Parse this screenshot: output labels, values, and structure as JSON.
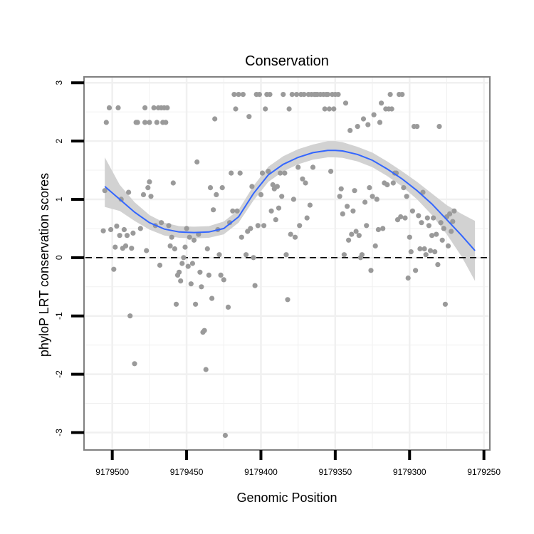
{
  "chart_data": {
    "type": "scatter",
    "title": "Conservation",
    "xlabel": "Genomic Position",
    "ylabel": "phyloP LRT conservation scores",
    "x_reversed": true,
    "xlim": [
      9179519,
      9179246
    ],
    "ylim": [
      -3.3,
      3.1
    ],
    "xticks": [
      9179500,
      9179450,
      9179400,
      9179350,
      9179300,
      9179250
    ],
    "xtick_labels": [
      "9179500",
      "9179450",
      "9179400",
      "9179350",
      "9179300",
      "9179250"
    ],
    "yticks": [
      -3,
      -2,
      -1,
      0,
      1,
      2,
      3
    ],
    "ytick_labels": [
      "-3",
      "-2",
      "-1",
      "0",
      "1",
      "2",
      "3"
    ],
    "reference_line": {
      "y": 0,
      "style": "dashed"
    },
    "colors": {
      "points": "#9a9a9a",
      "smooth_line": "#3366ff",
      "ribbon": "#d0d0d0",
      "grid": "#f0f0f0",
      "frame": "#808080",
      "reference": "#000000"
    },
    "smooth": {
      "x": [
        9179505,
        9179495,
        9179485,
        9179475,
        9179465,
        9179455,
        9179445,
        9179435,
        9179425,
        9179415,
        9179405,
        9179395,
        9179385,
        9179375,
        9179365,
        9179355,
        9179350,
        9179345,
        9179335,
        9179325,
        9179315,
        9179305,
        9179295,
        9179285,
        9179275,
        9179265,
        9179256
      ],
      "y": [
        1.22,
        1.0,
        0.78,
        0.6,
        0.49,
        0.44,
        0.43,
        0.44,
        0.5,
        0.7,
        1.1,
        1.42,
        1.6,
        1.72,
        1.8,
        1.84,
        1.84,
        1.83,
        1.77,
        1.67,
        1.52,
        1.35,
        1.15,
        0.92,
        0.65,
        0.38,
        0.12
      ],
      "ci_lower": [
        0.87,
        0.8,
        0.63,
        0.48,
        0.38,
        0.34,
        0.33,
        0.34,
        0.4,
        0.6,
        0.98,
        1.3,
        1.48,
        1.6,
        1.68,
        1.72,
        1.72,
        1.71,
        1.65,
        1.55,
        1.4,
        1.22,
        1.0,
        0.73,
        0.4,
        0.02,
        -0.4
      ],
      "ci_upper": [
        1.72,
        1.25,
        0.95,
        0.73,
        0.6,
        0.54,
        0.53,
        0.54,
        0.62,
        0.82,
        1.23,
        1.56,
        1.74,
        1.86,
        1.94,
        2.0,
        2.0,
        1.98,
        1.9,
        1.8,
        1.65,
        1.48,
        1.3,
        1.1,
        0.9,
        0.75,
        0.63
      ]
    },
    "points": [
      [
        9179506,
        0.46
      ],
      [
        9179505,
        1.15
      ],
      [
        9179504,
        2.32
      ],
      [
        9179502,
        2.57
      ],
      [
        9179501,
        0.48
      ],
      [
        9179499,
        -0.2
      ],
      [
        9179498,
        0.18
      ],
      [
        9179497,
        0.54
      ],
      [
        9179496,
        2.57
      ],
      [
        9179495,
        0.38
      ],
      [
        9179494,
        1.0
      ],
      [
        9179493,
        0.16
      ],
      [
        9179492,
        0.48
      ],
      [
        9179491,
        0.2
      ],
      [
        9179490,
        0.38
      ],
      [
        9179489,
        1.12
      ],
      [
        9179488,
        -1.0
      ],
      [
        9179487,
        0.16
      ],
      [
        9179486,
        0.42
      ],
      [
        9179485,
        -1.82
      ],
      [
        9179484,
        2.32
      ],
      [
        9179483,
        2.32
      ],
      [
        9179481,
        0.5
      ],
      [
        9179479,
        1.08
      ],
      [
        9179478,
        2.32
      ],
      [
        9179478,
        2.57
      ],
      [
        9179477,
        0.12
      ],
      [
        9179476,
        1.2
      ],
      [
        9179475,
        1.3
      ],
      [
        9179475,
        2.32
      ],
      [
        9179474,
        1.05
      ],
      [
        9179472,
        2.57
      ],
      [
        9179471,
        0.55
      ],
      [
        9179470,
        2.32
      ],
      [
        9179469,
        2.57
      ],
      [
        9179468,
        -0.13
      ],
      [
        9179467,
        2.57
      ],
      [
        9179467,
        0.6
      ],
      [
        9179466,
        2.32
      ],
      [
        9179465,
        2.57
      ],
      [
        9179464,
        2.32
      ],
      [
        9179463,
        2.57
      ],
      [
        9179462,
        0.55
      ],
      [
        9179461,
        0.2
      ],
      [
        9179460,
        0.35
      ],
      [
        9179459,
        1.28
      ],
      [
        9179458,
        0.15
      ],
      [
        9179457,
        -0.8
      ],
      [
        9179456,
        -0.3
      ],
      [
        9179455,
        -0.25
      ],
      [
        9179454,
        -0.4
      ],
      [
        9179453,
        -0.1
      ],
      [
        9179452,
        0.0
      ],
      [
        9179451,
        0.18
      ],
      [
        9179450,
        0.5
      ],
      [
        9179449,
        -0.15
      ],
      [
        9179448,
        0.35
      ],
      [
        9179447,
        -0.45
      ],
      [
        9179446,
        -0.1
      ],
      [
        9179445,
        0.3
      ],
      [
        9179444,
        -0.8
      ],
      [
        9179443,
        1.64
      ],
      [
        9179442,
        0.4
      ],
      [
        9179441,
        -0.25
      ],
      [
        9179440,
        -0.5
      ],
      [
        9179439,
        -1.28
      ],
      [
        9179438,
        -1.25
      ],
      [
        9179437,
        -1.92
      ],
      [
        9179436,
        0.15
      ],
      [
        9179435,
        -0.3
      ],
      [
        9179434,
        1.2
      ],
      [
        9179433,
        -0.7
      ],
      [
        9179432,
        0.82
      ],
      [
        9179431,
        2.38
      ],
      [
        9179430,
        1.08
      ],
      [
        9179429,
        0.48
      ],
      [
        9179428,
        0.05
      ],
      [
        9179427,
        -0.3
      ],
      [
        9179426,
        1.2
      ],
      [
        9179425,
        -0.38
      ],
      [
        9179424,
        -3.05
      ],
      [
        9179422,
        -0.85
      ],
      [
        9179421,
        0.6
      ],
      [
        9179420,
        1.45
      ],
      [
        9179419,
        0.8
      ],
      [
        9179418,
        2.8
      ],
      [
        9179417,
        2.55
      ],
      [
        9179416,
        0.8
      ],
      [
        9179415,
        2.8
      ],
      [
        9179414,
        1.45
      ],
      [
        9179413,
        0.35
      ],
      [
        9179412,
        2.8
      ],
      [
        9179410,
        0.05
      ],
      [
        9179409,
        0.45
      ],
      [
        9179408,
        2.42
      ],
      [
        9179407,
        0.5
      ],
      [
        9179406,
        1.22
      ],
      [
        9179405,
        0.0
      ],
      [
        9179404,
        -0.48
      ],
      [
        9179403,
        2.8
      ],
      [
        9179402,
        0.55
      ],
      [
        9179401,
        2.8
      ],
      [
        9179400,
        1.08
      ],
      [
        9179399,
        1.45
      ],
      [
        9179398,
        0.55
      ],
      [
        9179397,
        2.55
      ],
      [
        9179396,
        2.8
      ],
      [
        9179395,
        1.48
      ],
      [
        9179394,
        2.8
      ],
      [
        9179393,
        0.8
      ],
      [
        9179392,
        1.25
      ],
      [
        9179391,
        1.18
      ],
      [
        9179390,
        0.65
      ],
      [
        9179389,
        1.22
      ],
      [
        9179388,
        0.85
      ],
      [
        9179387,
        1.45
      ],
      [
        9179386,
        1.05
      ],
      [
        9179385,
        2.8
      ],
      [
        9179384,
        1.45
      ],
      [
        9179383,
        0.05
      ],
      [
        9179382,
        -0.72
      ],
      [
        9179381,
        2.55
      ],
      [
        9179380,
        0.4
      ],
      [
        9179379,
        2.8
      ],
      [
        9179378,
        1.0
      ],
      [
        9179377,
        0.35
      ],
      [
        9179376,
        2.8
      ],
      [
        9179375,
        1.55
      ],
      [
        9179374,
        0.55
      ],
      [
        9179373,
        2.8
      ],
      [
        9179372,
        1.35
      ],
      [
        9179371,
        2.8
      ],
      [
        9179370,
        1.28
      ],
      [
        9179369,
        0.68
      ],
      [
        9179368,
        2.8
      ],
      [
        9179367,
        0.9
      ],
      [
        9179366,
        2.8
      ],
      [
        9179365,
        1.55
      ],
      [
        9179364,
        2.8
      ],
      [
        9179363,
        2.8
      ],
      [
        9179362,
        2.8
      ],
      [
        9179360,
        2.8
      ],
      [
        9179358,
        2.8
      ],
      [
        9179357,
        2.55
      ],
      [
        9179356,
        2.8
      ],
      [
        9179355,
        2.8
      ],
      [
        9179354,
        2.55
      ],
      [
        9179353,
        1.48
      ],
      [
        9179352,
        2.8
      ],
      [
        9179351,
        2.55
      ],
      [
        9179350,
        2.8
      ],
      [
        9179348,
        2.8
      ],
      [
        9179347,
        1.05
      ],
      [
        9179346,
        1.18
      ],
      [
        9179345,
        0.75
      ],
      [
        9179344,
        0.05
      ],
      [
        9179343,
        2.65
      ],
      [
        9179342,
        0.88
      ],
      [
        9179341,
        0.3
      ],
      [
        9179340,
        2.18
      ],
      [
        9179339,
        0.4
      ],
      [
        9179338,
        0.8
      ],
      [
        9179337,
        1.15
      ],
      [
        9179336,
        0.45
      ],
      [
        9179335,
        2.25
      ],
      [
        9179334,
        0.38
      ],
      [
        9179333,
        0.0
      ],
      [
        9179332,
        0.05
      ],
      [
        9179331,
        2.38
      ],
      [
        9179330,
        0.95
      ],
      [
        9179329,
        0.55
      ],
      [
        9179328,
        2.28
      ],
      [
        9179327,
        1.2
      ],
      [
        9179326,
        -0.22
      ],
      [
        9179325,
        1.05
      ],
      [
        9179324,
        2.45
      ],
      [
        9179323,
        0.2
      ],
      [
        9179322,
        1.0
      ],
      [
        9179321,
        0.48
      ],
      [
        9179320,
        2.32
      ],
      [
        9179319,
        2.65
      ],
      [
        9179318,
        0.5
      ],
      [
        9179317,
        1.28
      ],
      [
        9179316,
        2.55
      ],
      [
        9179315,
        1.25
      ],
      [
        9179314,
        2.55
      ],
      [
        9179313,
        2.8
      ],
      [
        9179312,
        2.55
      ],
      [
        9179311,
        1.28
      ],
      [
        9179310,
        1.45
      ],
      [
        9179309,
        1.45
      ],
      [
        9179308,
        0.65
      ],
      [
        9179307,
        2.8
      ],
      [
        9179306,
        0.7
      ],
      [
        9179305,
        2.8
      ],
      [
        9179304,
        1.2
      ],
      [
        9179303,
        0.68
      ],
      [
        9179302,
        1.05
      ],
      [
        9179301,
        -0.35
      ],
      [
        9179300,
        0.35
      ],
      [
        9179299,
        0.1
      ],
      [
        9179298,
        0.8
      ],
      [
        9179297,
        2.25
      ],
      [
        9179296,
        -0.22
      ],
      [
        9179295,
        2.25
      ],
      [
        9179294,
        0.72
      ],
      [
        9179293,
        0.15
      ],
      [
        9179292,
        0.6
      ],
      [
        9179291,
        1.12
      ],
      [
        9179290,
        0.15
      ],
      [
        9179289,
        0.05
      ],
      [
        9179288,
        0.68
      ],
      [
        9179287,
        0.55
      ],
      [
        9179286,
        0.12
      ],
      [
        9179285,
        0.38
      ],
      [
        9179284,
        0.68
      ],
      [
        9179283,
        0.1
      ],
      [
        9179282,
        0.4
      ],
      [
        9179281,
        -0.12
      ],
      [
        9179280,
        2.25
      ],
      [
        9179279,
        0.6
      ],
      [
        9179278,
        0.3
      ],
      [
        9179277,
        0.5
      ],
      [
        9179276,
        -0.8
      ],
      [
        9179275,
        0.7
      ],
      [
        9179274,
        0.2
      ],
      [
        9179273,
        0.75
      ],
      [
        9179272,
        0.45
      ],
      [
        9179271,
        0.62
      ],
      [
        9179270,
        0.8
      ]
    ]
  }
}
